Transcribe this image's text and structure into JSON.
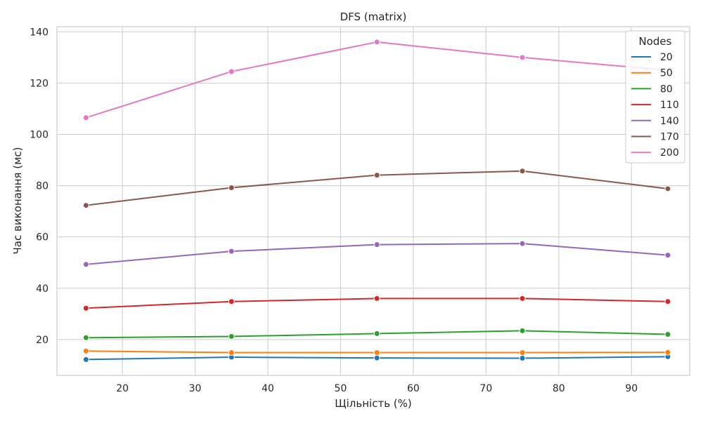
{
  "chart_data": {
    "type": "line",
    "title": "DFS (matrix)",
    "xlabel": "Щільність (%)",
    "ylabel": "Час виконання (мс)",
    "x": [
      15,
      35,
      55,
      75,
      95
    ],
    "xlim": [
      11,
      98
    ],
    "ylim": [
      6,
      142
    ],
    "xticks": [
      20,
      30,
      40,
      50,
      60,
      70,
      80,
      90
    ],
    "yticks": [
      20,
      40,
      60,
      80,
      100,
      120,
      140
    ],
    "grid": true,
    "legend": {
      "title": "Nodes",
      "placement": "top-right"
    },
    "series": [
      {
        "name": "20",
        "color": "#1f77b4",
        "values": [
          12.2,
          13.1,
          12.8,
          12.7,
          13.3
        ]
      },
      {
        "name": "50",
        "color": "#ff7f0e",
        "values": [
          15.5,
          14.9,
          14.9,
          14.9,
          15.0
        ]
      },
      {
        "name": "80",
        "color": "#2ca02c",
        "values": [
          20.7,
          21.2,
          22.3,
          23.4,
          22.0
        ]
      },
      {
        "name": "110",
        "color": "#d62728",
        "values": [
          32.2,
          34.8,
          36.0,
          36.0,
          34.8
        ]
      },
      {
        "name": "140",
        "color": "#9467bd",
        "values": [
          49.3,
          54.4,
          57.0,
          57.4,
          52.9
        ]
      },
      {
        "name": "170",
        "color": "#8c564b",
        "values": [
          72.3,
          79.2,
          84.1,
          85.7,
          78.8
        ]
      },
      {
        "name": "200",
        "color": "#e377c2",
        "values": [
          106.5,
          124.5,
          136.0,
          130.0,
          125.0
        ]
      }
    ]
  }
}
